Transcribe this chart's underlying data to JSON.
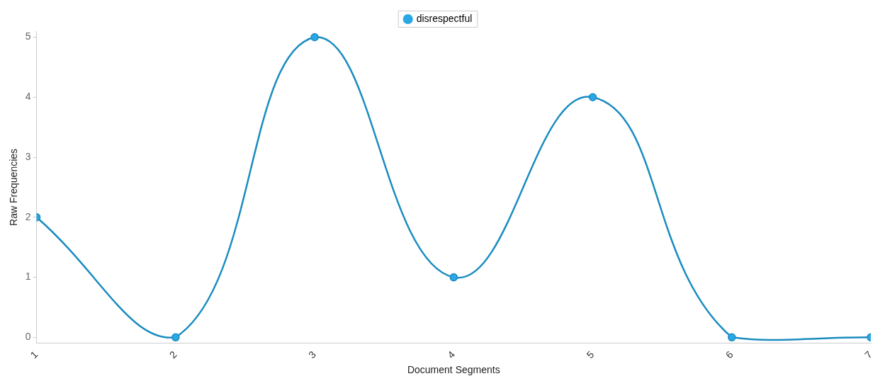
{
  "chart_data": {
    "type": "line",
    "xlabel": "Document Segments",
    "ylabel": "Raw Frequencies",
    "categories": [
      "1",
      "2",
      "3",
      "4",
      "5",
      "6",
      "7"
    ],
    "series": [
      {
        "name": "disrespectful",
        "color": "#1a8cc0",
        "values": [
          2,
          0,
          5,
          1,
          4,
          0,
          0
        ]
      }
    ],
    "ylim": [
      -0.1,
      5.1
    ],
    "yticks": [
      0,
      1,
      2,
      3,
      4,
      5
    ],
    "grid": false,
    "legend": "top",
    "marker": "circle",
    "line_style": "solid"
  }
}
